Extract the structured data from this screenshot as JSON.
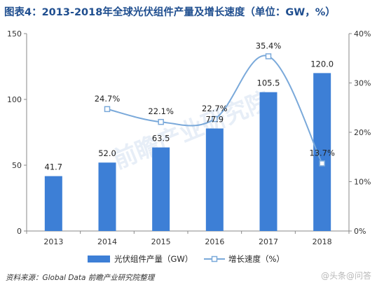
{
  "title": "图表4：2013-2018年全球光伏组件产量及增长速度（单位：GW，%）",
  "source": "资料来源：Global Data 前瞻产业研究院整理",
  "watermark": "前瞻产业研究院",
  "corner_watermark": "@头条@问答",
  "colors": {
    "bar": "#3d7fd6",
    "line": "#7aa9da",
    "axis": "#888888",
    "grid": "#d9d9d9"
  },
  "chart_data": {
    "type": "bar",
    "categories": [
      "2013",
      "2014",
      "2015",
      "2016",
      "2017",
      "2018"
    ],
    "series": [
      {
        "name": "光伏组件产量（GW）",
        "type": "bar",
        "axis": "left",
        "values": [
          41.7,
          52.0,
          63.5,
          77.9,
          105.5,
          120.0
        ],
        "labels": [
          "41.7",
          "52.0",
          "63.5",
          "77.9",
          "105.5",
          "120.0"
        ]
      },
      {
        "name": "增长速度（%）",
        "type": "line",
        "axis": "right",
        "values": [
          null,
          24.7,
          22.1,
          22.7,
          35.4,
          13.7
        ],
        "labels": [
          "",
          "24.7%",
          "22.1%",
          "22.7%",
          "35.4%",
          "13.7%"
        ]
      }
    ],
    "y_left": {
      "ticks": [
        0,
        50,
        100,
        150
      ],
      "ylim": [
        0,
        150
      ]
    },
    "y_right": {
      "ticks": [
        "0%",
        "10%",
        "20%",
        "30%",
        "40%"
      ],
      "ylim": [
        0,
        40
      ]
    },
    "legend_position": "bottom",
    "grid": false
  }
}
